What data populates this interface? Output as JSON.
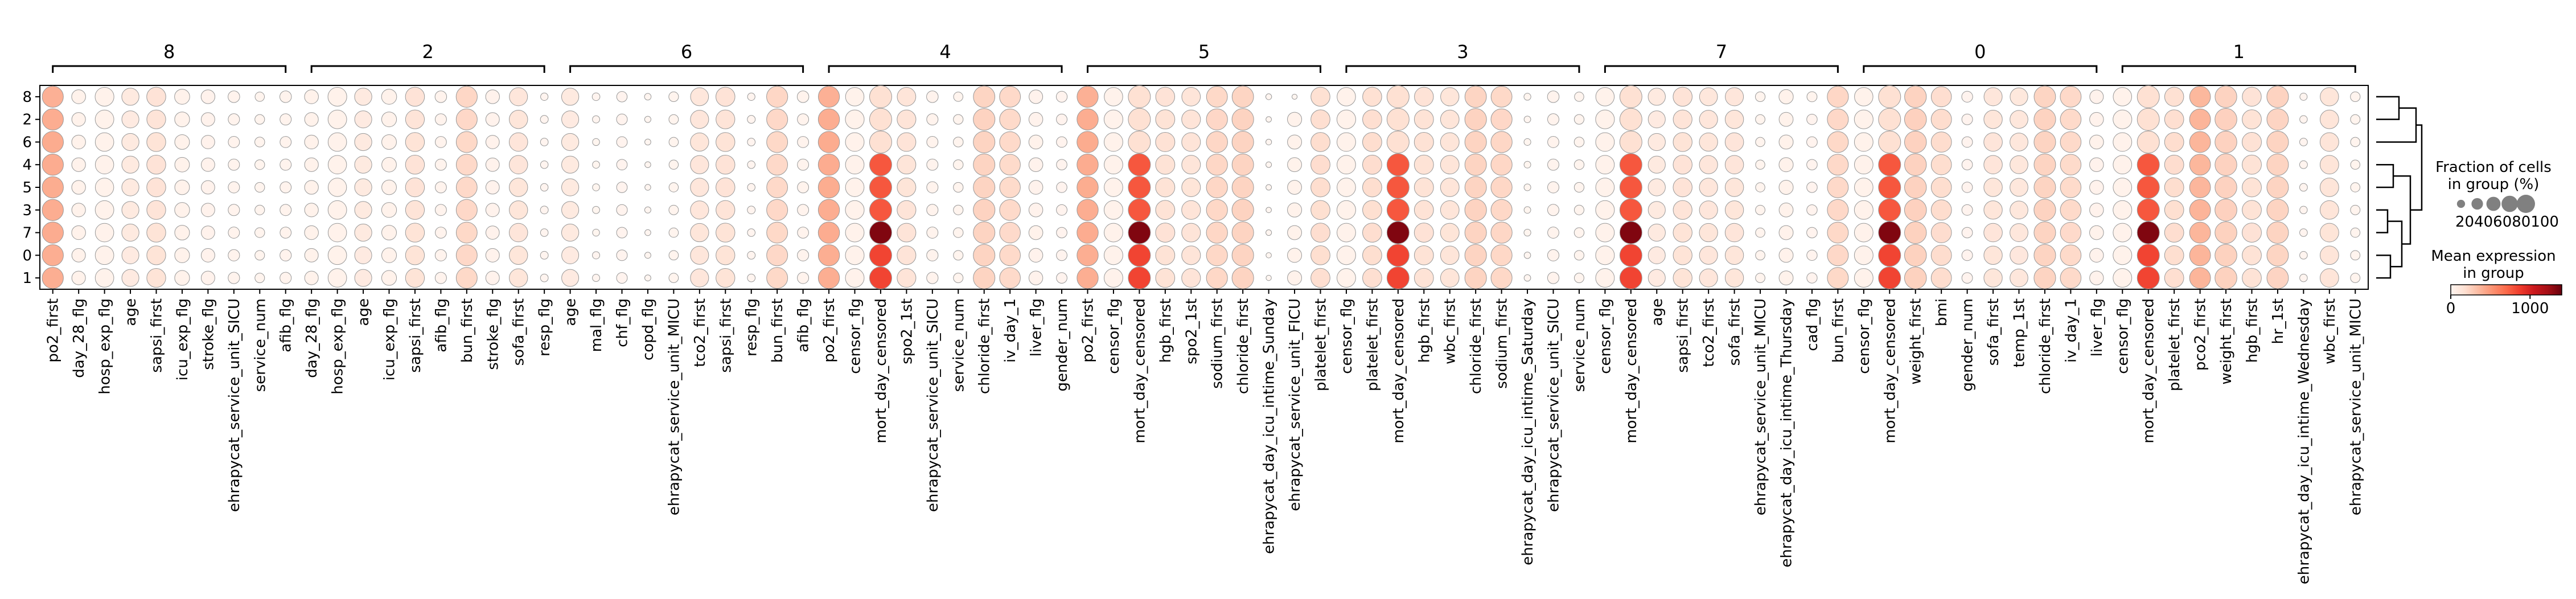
{
  "chart_data": {
    "type": "dotplot",
    "rows": [
      "8",
      "2",
      "6",
      "4",
      "5",
      "3",
      "7",
      "0",
      "1"
    ],
    "groups": [
      {
        "label": "8",
        "genes": [
          "po2_first",
          "day_28_flg",
          "hosp_exp_flg",
          "age",
          "sapsi_first",
          "icu_exp_flg",
          "stroke_flg",
          "ehrapycat_service_unit_SICU",
          "service_num",
          "afib_flg"
        ]
      },
      {
        "label": "2",
        "genes": [
          "day_28_flg",
          "hosp_exp_flg",
          "age",
          "icu_exp_flg",
          "sapsi_first",
          "afib_flg",
          "bun_first",
          "stroke_flg",
          "sofa_first",
          "resp_flg"
        ]
      },
      {
        "label": "6",
        "genes": [
          "age",
          "mal_flg",
          "chf_flg",
          "copd_flg",
          "ehrapycat_service_unit_MICU",
          "tco2_first",
          "sapsi_first",
          "resp_flg",
          "bun_first",
          "afib_flg"
        ]
      },
      {
        "label": "4",
        "genes": [
          "po2_first",
          "censor_flg",
          "mort_day_censored",
          "spo2_1st",
          "ehrapycat_service_unit_SICU",
          "service_num",
          "chloride_first",
          "iv_day_1",
          "liver_flg",
          "gender_num"
        ]
      },
      {
        "label": "5",
        "genes": [
          "po2_first",
          "censor_flg",
          "mort_day_censored",
          "hgb_first",
          "spo2_1st",
          "sodium_first",
          "chloride_first",
          "ehrapycat_day_icu_intime_Sunday",
          "ehrapycat_service_unit_FICU",
          "platelet_first"
        ]
      },
      {
        "label": "3",
        "genes": [
          "censor_flg",
          "platelet_first",
          "mort_day_censored",
          "hgb_first",
          "wbc_first",
          "chloride_first",
          "sodium_first",
          "ehrapycat_day_icu_intime_Saturday",
          "ehrapycat_service_unit_SICU",
          "service_num"
        ]
      },
      {
        "label": "7",
        "genes": [
          "censor_flg",
          "mort_day_censored",
          "age",
          "sapsi_first",
          "tco2_first",
          "sofa_first",
          "ehrapycat_service_unit_MICU",
          "ehrapycat_day_icu_intime_Thursday",
          "cad_flg",
          "bun_first"
        ]
      },
      {
        "label": "0",
        "genes": [
          "censor_flg",
          "mort_day_censored",
          "weight_first",
          "bmi",
          "gender_num",
          "sofa_first",
          "temp_1st",
          "chloride_first",
          "iv_day_1",
          "liver_flg"
        ]
      },
      {
        "label": "1",
        "genes": [
          "censor_flg",
          "mort_day_censored",
          "platelet_first",
          "pco2_first",
          "weight_first",
          "hgb_first",
          "hr_1st",
          "ehrapycat_day_icu_intime_Wednesday",
          "wbc_first",
          "ehrapycat_service_unit_MICU"
        ]
      }
    ],
    "size_legend": {
      "title": "Fraction of cells\nin group (%)",
      "values": [
        20,
        40,
        60,
        80,
        100
      ]
    },
    "color_legend": {
      "title": "Mean expression\nin group",
      "ticks": [
        0,
        1000
      ],
      "vmin": 0,
      "vmax": 1400
    },
    "colormap": [
      "#fff5f0",
      "#fee0d2",
      "#fcbba1",
      "#fc9272",
      "#fb6a4a",
      "#ef3b2c",
      "#cb181d",
      "#a50f15",
      "#67000d"
    ],
    "dendrogram": "right"
  }
}
